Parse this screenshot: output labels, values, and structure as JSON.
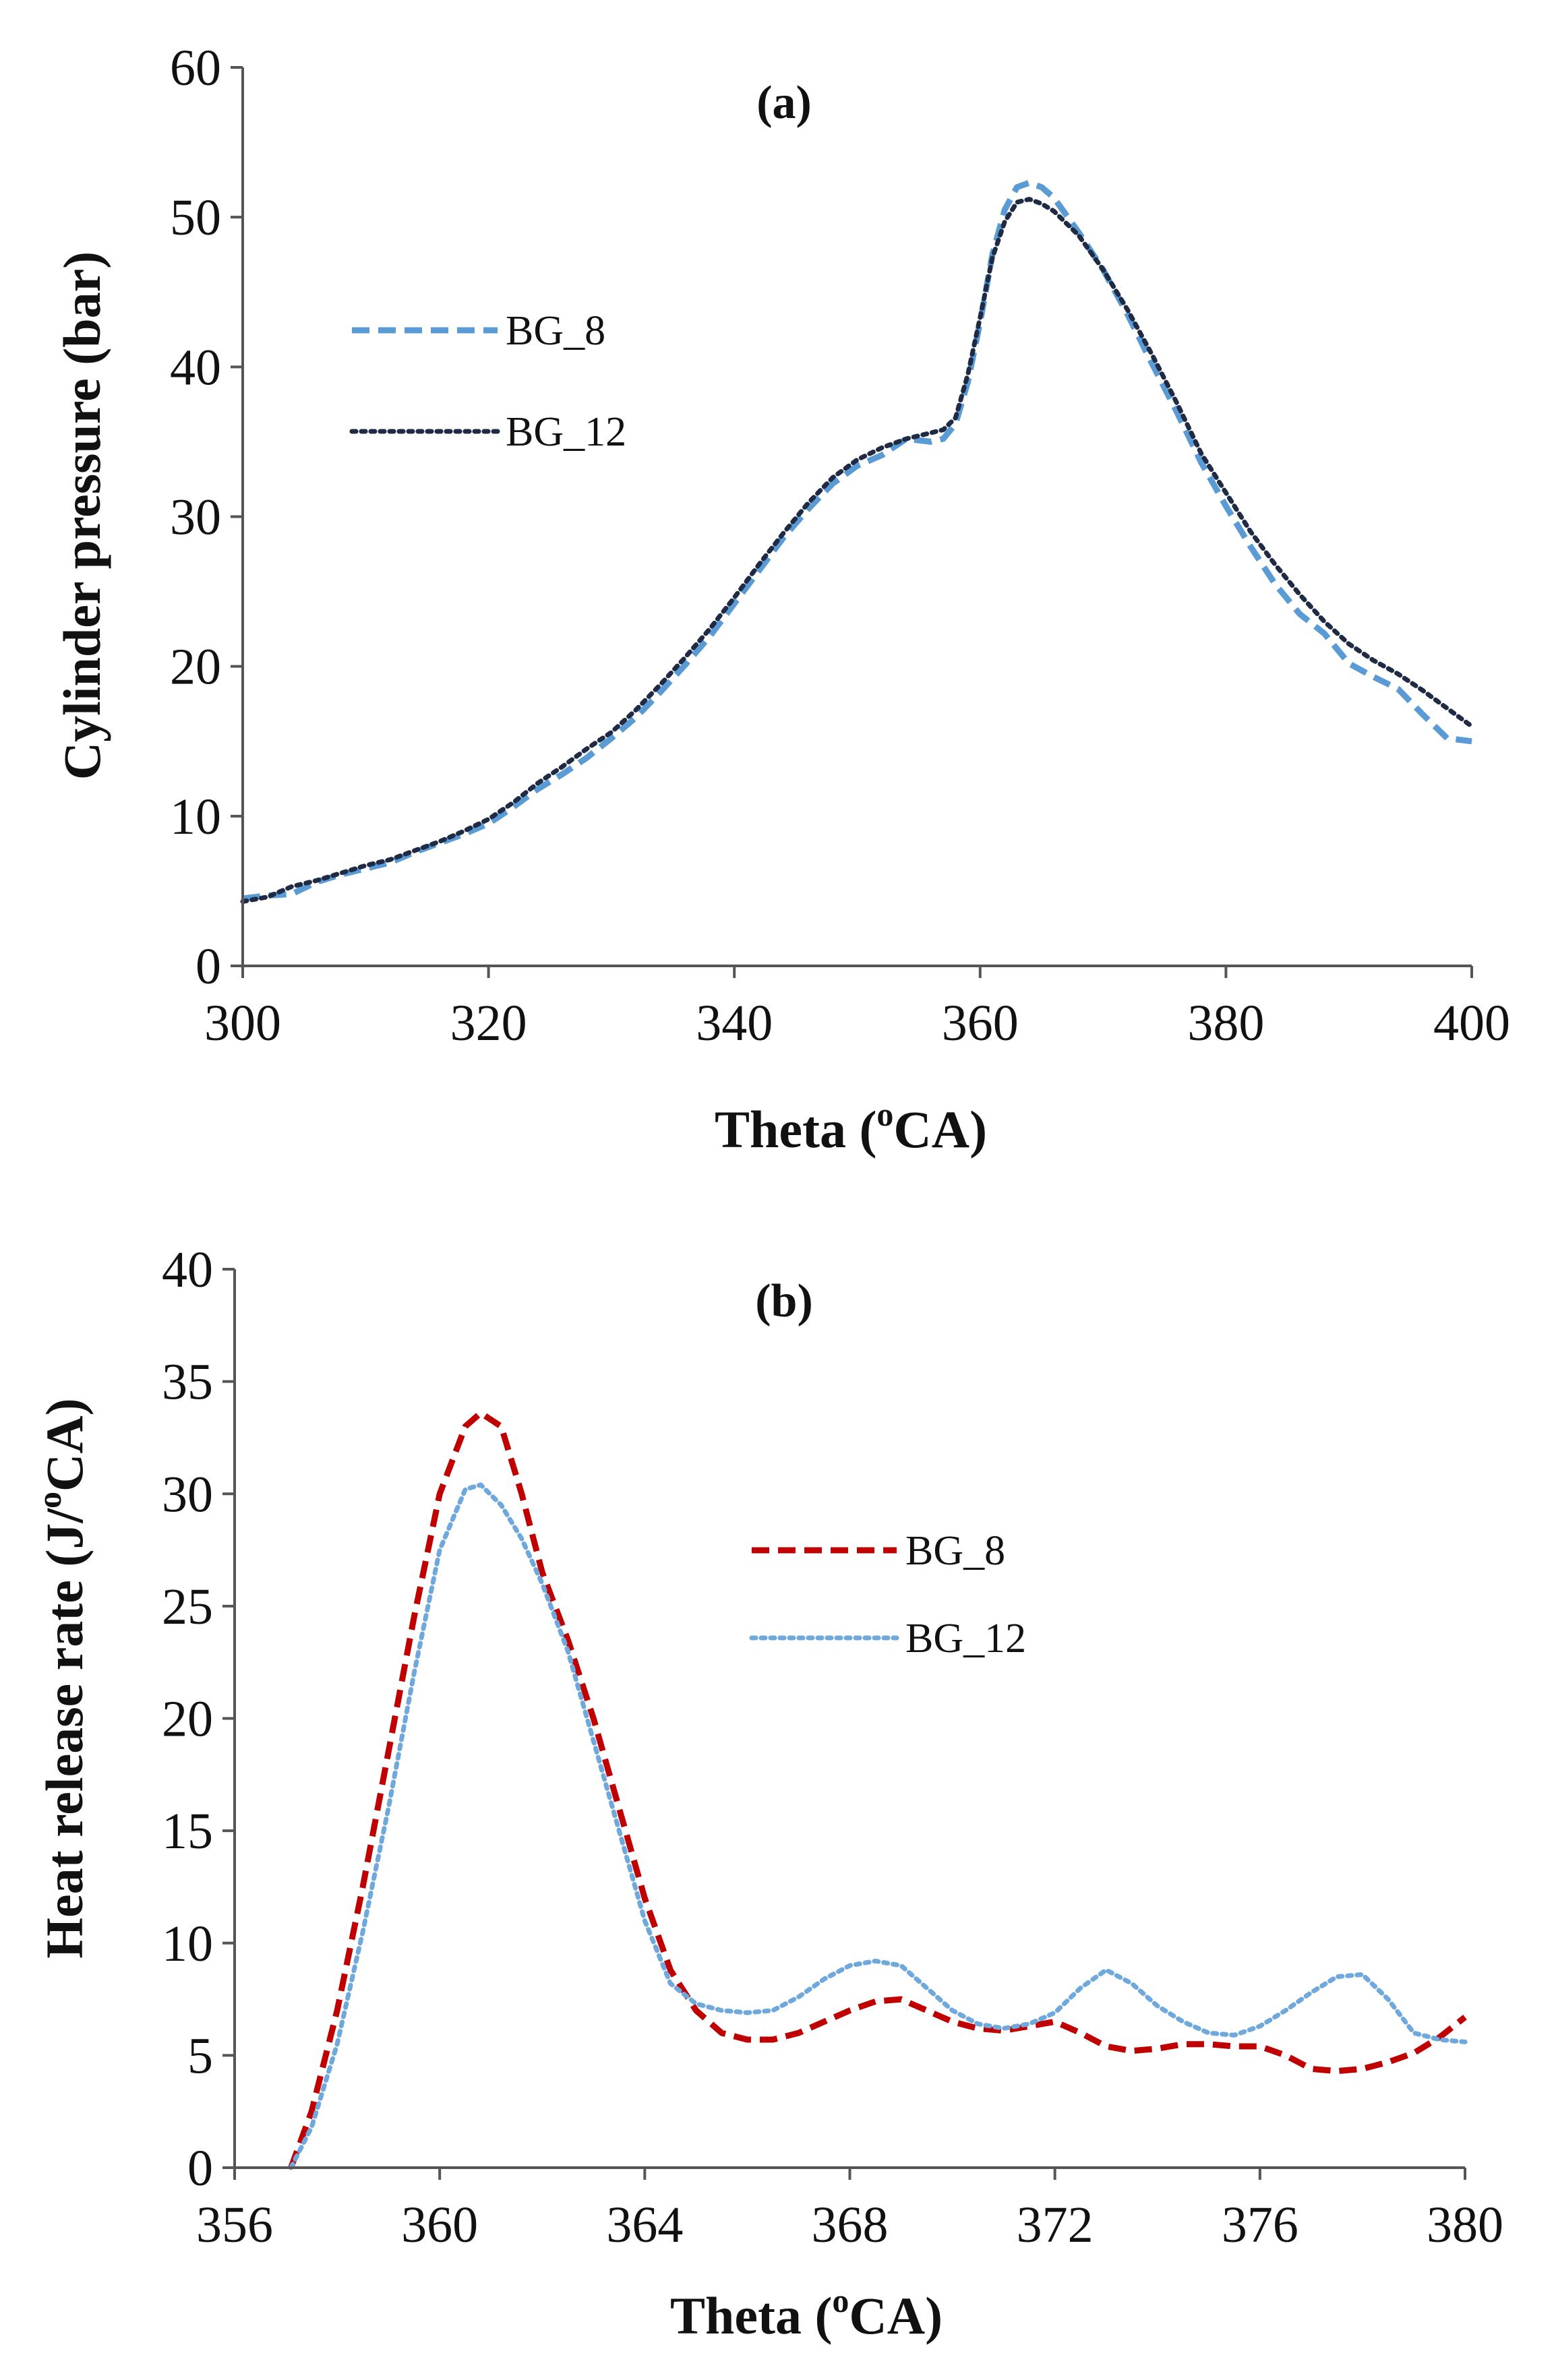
{
  "chart_data": [
    {
      "type": "line",
      "panel_label": "(a)",
      "xlabel": "Theta (",
      "xlabel_sup": "o",
      "xlabel_end": "CA)",
      "ylabel": "Cylinder pressure (bar)",
      "xlim": [
        300,
        400
      ],
      "ylim": [
        0,
        60
      ],
      "xticks": [
        300,
        320,
        340,
        360,
        380,
        400
      ],
      "yticks": [
        0,
        10,
        20,
        30,
        40,
        50,
        60
      ],
      "grid": false,
      "legend_position": "upper-left",
      "series": [
        {
          "name": "BG_8",
          "color": "#5B9BD5",
          "style": "dashed",
          "x": [
            300,
            302,
            304,
            306,
            308,
            310,
            312,
            314,
            316,
            318,
            320,
            322,
            324,
            326,
            328,
            330,
            332,
            334,
            336,
            338,
            340,
            342,
            344,
            346,
            348,
            350,
            352,
            354,
            356,
            357,
            358,
            359,
            360,
            361,
            362,
            363,
            364,
            365,
            366,
            368,
            370,
            372,
            374,
            376,
            378,
            380,
            382,
            384,
            386,
            388,
            390,
            392,
            394,
            396,
            398,
            400
          ],
          "y": [
            4.5,
            4.7,
            4.8,
            5.6,
            6.1,
            6.5,
            6.9,
            7.6,
            8.2,
            8.8,
            9.5,
            10.6,
            11.8,
            12.8,
            13.9,
            15.2,
            16.6,
            18.3,
            20.1,
            22.0,
            24.2,
            26.4,
            28.6,
            30.5,
            32.2,
            33.4,
            34.1,
            35.2,
            35.0,
            35.2,
            36.2,
            39.0,
            43.0,
            47.5,
            50.5,
            52.0,
            52.3,
            52.0,
            51.3,
            49.0,
            46.5,
            43.5,
            40.2,
            37.0,
            33.6,
            30.7,
            28.0,
            25.5,
            23.5,
            22.2,
            20.2,
            19.3,
            18.5,
            16.8,
            15.2,
            15.0
          ]
        },
        {
          "name": "BG_12",
          "color": "#1F2A44",
          "style": "dotted",
          "x": [
            300,
            302,
            304,
            306,
            308,
            310,
            312,
            314,
            316,
            318,
            320,
            322,
            324,
            326,
            328,
            330,
            332,
            334,
            336,
            338,
            340,
            342,
            344,
            346,
            348,
            350,
            352,
            354,
            356,
            357,
            358,
            359,
            360,
            361,
            362,
            363,
            364,
            365,
            366,
            368,
            370,
            372,
            374,
            376,
            378,
            380,
            382,
            384,
            386,
            388,
            390,
            392,
            394,
            396,
            398,
            400
          ],
          "y": [
            4.3,
            4.6,
            5.3,
            5.7,
            6.2,
            6.7,
            7.1,
            7.7,
            8.3,
            9.0,
            9.8,
            10.9,
            12.2,
            13.3,
            14.5,
            15.6,
            17.1,
            18.8,
            20.6,
            22.5,
            24.6,
            26.8,
            28.9,
            30.9,
            32.6,
            33.8,
            34.6,
            35.2,
            35.6,
            35.8,
            36.6,
            39.5,
            43.3,
            47.3,
            49.7,
            51.0,
            51.2,
            50.9,
            50.4,
            48.8,
            46.5,
            43.8,
            40.8,
            37.6,
            34.2,
            31.6,
            29.0,
            26.8,
            24.8,
            23.0,
            21.5,
            20.4,
            19.5,
            18.4,
            17.2,
            16.0
          ]
        }
      ]
    },
    {
      "type": "line",
      "panel_label": "(b)",
      "xlabel": "Theta (",
      "xlabel_sup": "o",
      "xlabel_end": "CA)",
      "ylabel": "Heat release rate (J/",
      "ylabel_sup": "o",
      "ylabel_end": "CA)",
      "xlim": [
        356,
        380
      ],
      "ylim": [
        0,
        40
      ],
      "xticks": [
        356,
        360,
        364,
        368,
        372,
        376,
        380
      ],
      "yticks": [
        0,
        5,
        10,
        15,
        20,
        25,
        30,
        35,
        40
      ],
      "grid": false,
      "legend_position": "center-right",
      "series": [
        {
          "name": "BG_8",
          "color": "#C00000",
          "style": "dashed",
          "x": [
            357.1,
            357.5,
            358.0,
            358.5,
            359.0,
            359.5,
            360.0,
            360.5,
            360.8,
            361.2,
            361.6,
            362.0,
            362.5,
            363.0,
            363.5,
            364.0,
            364.5,
            365.0,
            365.5,
            366.0,
            366.5,
            367.0,
            367.5,
            368.0,
            368.5,
            369.0,
            369.5,
            370.0,
            370.5,
            371.0,
            371.5,
            372.0,
            372.5,
            373.0,
            373.5,
            374.0,
            374.5,
            375.0,
            375.5,
            376.0,
            376.5,
            377.0,
            377.5,
            378.0,
            378.5,
            379.0,
            379.5,
            380.0
          ],
          "y": [
            0,
            2.5,
            7.0,
            12.5,
            18.5,
            24.5,
            30.0,
            33.0,
            33.6,
            33.0,
            30.0,
            26.5,
            23.5,
            20.0,
            16.0,
            12.0,
            8.8,
            7.0,
            6.0,
            5.7,
            5.7,
            6.0,
            6.5,
            7.0,
            7.4,
            7.5,
            7.0,
            6.5,
            6.2,
            6.1,
            6.3,
            6.5,
            6.0,
            5.4,
            5.2,
            5.3,
            5.5,
            5.5,
            5.4,
            5.4,
            5.0,
            4.4,
            4.3,
            4.4,
            4.7,
            5.1,
            5.8,
            6.7
          ]
        },
        {
          "name": "BG_12",
          "color": "#6FA8DC",
          "style": "dotted",
          "x": [
            357.1,
            357.5,
            358.0,
            358.5,
            359.0,
            359.5,
            360.0,
            360.5,
            360.8,
            361.2,
            361.6,
            362.0,
            362.5,
            363.0,
            363.5,
            364.0,
            364.5,
            365.0,
            365.5,
            366.0,
            366.5,
            367.0,
            367.5,
            368.0,
            368.5,
            369.0,
            369.5,
            370.0,
            370.5,
            371.0,
            371.5,
            372.0,
            372.5,
            373.0,
            373.5,
            374.0,
            374.5,
            375.0,
            375.5,
            376.0,
            376.5,
            377.0,
            377.5,
            378.0,
            378.5,
            379.0,
            379.5,
            380.0
          ],
          "y": [
            0,
            1.8,
            5.5,
            10.5,
            16.0,
            22.0,
            27.5,
            30.2,
            30.4,
            29.5,
            28.0,
            26.0,
            23.0,
            19.0,
            15.0,
            11.0,
            8.2,
            7.3,
            7.0,
            6.9,
            7.0,
            7.6,
            8.4,
            9.0,
            9.2,
            9.0,
            8.0,
            7.0,
            6.4,
            6.2,
            6.4,
            6.9,
            8.0,
            8.8,
            8.2,
            7.2,
            6.5,
            6.0,
            5.9,
            6.3,
            7.0,
            7.8,
            8.5,
            8.6,
            7.5,
            6.0,
            5.7,
            5.6
          ]
        }
      ]
    }
  ]
}
